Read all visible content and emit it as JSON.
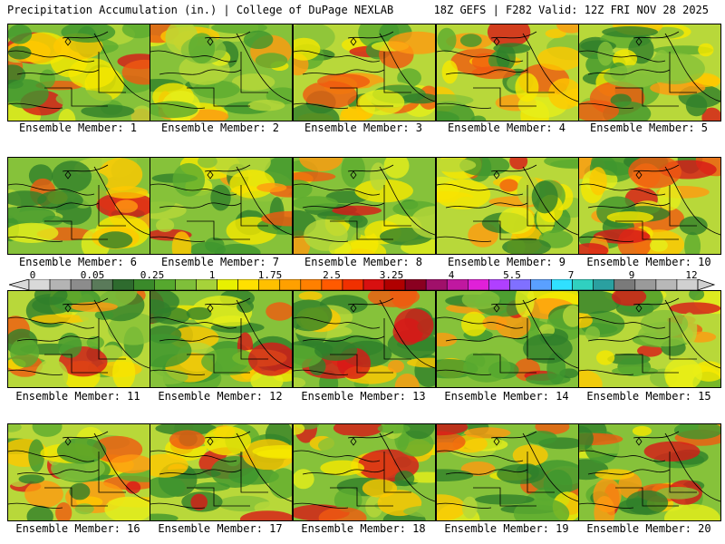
{
  "header": {
    "left": "Precipitation Accumulation (in.) | College of DuPage NEXLAB",
    "right": "18Z GEFS | F282 Valid: 12Z FRI NOV 28 2025"
  },
  "colorbar": {
    "labels": [
      "0",
      "0.05",
      "0.25",
      "1",
      "1.75",
      "2.5",
      "3.25",
      "4",
      "5.5",
      "7",
      "9",
      "12"
    ],
    "colors": [
      "#d9d9d9",
      "#b4b4b4",
      "#8c8c8c",
      "#5a7a5a",
      "#2e6b2e",
      "#3a8a2a",
      "#56a82e",
      "#7fbf3a",
      "#a6d23a",
      "#e8f000",
      "#ffe000",
      "#ffc000",
      "#ffa000",
      "#ff8000",
      "#ff5a00",
      "#f03000",
      "#d81010",
      "#b00000",
      "#8a0020",
      "#a0106a",
      "#c018a0",
      "#e020d8",
      "#b040ff",
      "#8070ff",
      "#5aa0ff",
      "#30e0ff",
      "#30d0c0",
      "#2aa0a0",
      "#7a7a7a",
      "#9a9a9a",
      "#b8b8b8",
      "#d0d0d0"
    ]
  },
  "panels": [
    {
      "label": "Ensemble Member: 1"
    },
    {
      "label": "Ensemble Member: 2"
    },
    {
      "label": "Ensemble Member: 3"
    },
    {
      "label": "Ensemble Member: 4"
    },
    {
      "label": "Ensemble Member: 5"
    },
    {
      "label": "Ensemble Member: 6"
    },
    {
      "label": "Ensemble Member: 7"
    },
    {
      "label": "Ensemble Member: 8"
    },
    {
      "label": "Ensemble Member: 9"
    },
    {
      "label": "Ensemble Member: 10"
    },
    {
      "label": "Ensemble Member: 11"
    },
    {
      "label": "Ensemble Member: 12"
    },
    {
      "label": "Ensemble Member: 13"
    },
    {
      "label": "Ensemble Member: 14"
    },
    {
      "label": "Ensemble Member: 15"
    },
    {
      "label": "Ensemble Member: 16"
    },
    {
      "label": "Ensemble Member: 17"
    },
    {
      "label": "Ensemble Member: 18"
    },
    {
      "label": "Ensemble Member: 19"
    },
    {
      "label": "Ensemble Member: 20"
    }
  ]
}
